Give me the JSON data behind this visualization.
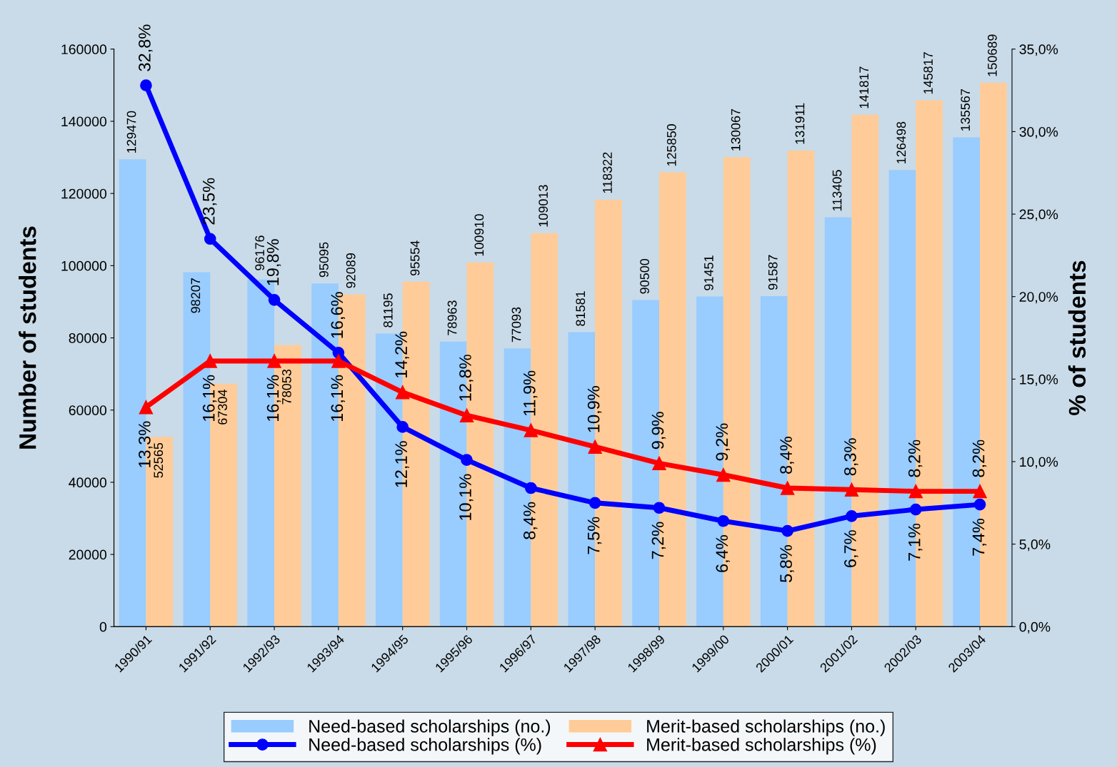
{
  "chart_data": {
    "type": "bar",
    "ylabel": "Number of students",
    "y2label": "% of students",
    "categories": [
      "1990/91",
      "1991/92",
      "1992/93",
      "1993/94",
      "1994/95",
      "1995/96",
      "1996/97",
      "1997/98",
      "1998/99",
      "1999/00",
      "2000/01",
      "2001/02",
      "2002/03",
      "2003/04"
    ],
    "series": [
      {
        "name": "Need-based scholarships (no.)",
        "color": "#99ccff",
        "values": [
          129470,
          98207,
          96176,
          95095,
          81195,
          78963,
          77093,
          81581,
          90500,
          91451,
          91587,
          113405,
          126498,
          135567
        ]
      },
      {
        "name": "Merit-based scholarships (no.)",
        "color": "#ffcc99",
        "values": [
          52565,
          67304,
          78053,
          92089,
          95554,
          100910,
          109013,
          118322,
          125850,
          130067,
          131911,
          141817,
          145817,
          150689
        ]
      },
      {
        "name": "Need-based scholarships (%)",
        "type": "line",
        "axis": "y2",
        "color": "#0000ff",
        "marker": "circle",
        "values": [
          32.8,
          23.5,
          19.8,
          16.6,
          12.1,
          10.1,
          8.4,
          7.5,
          7.2,
          6.4,
          5.8,
          6.7,
          7.1,
          7.4
        ],
        "value_labels": [
          "32,8%",
          "23,5%",
          "19,8%",
          "16,6%",
          "12,1%",
          "10,1%",
          "8,4%",
          "7,5%",
          "7,2%",
          "6,4%",
          "5,8%",
          "6,7%",
          "7,1%",
          "7,4%"
        ]
      },
      {
        "name": "Merit-based scholarships (%)",
        "type": "line",
        "axis": "y2",
        "color": "#ff0000",
        "marker": "triangle",
        "values": [
          13.3,
          16.1,
          16.1,
          16.1,
          14.2,
          12.8,
          11.9,
          10.9,
          9.9,
          9.2,
          8.4,
          8.3,
          8.2,
          8.2
        ],
        "value_labels": [
          "13,3%",
          "16,1%",
          "16,1%",
          "16,1%",
          "14,2%",
          "12,8%",
          "11,9%",
          "10,9%",
          "9,9%",
          "9,2%",
          "8,4%",
          "8,3%",
          "8,2%",
          "8,2%"
        ]
      }
    ],
    "data_labels": true,
    "ylim": [
      0,
      160000
    ],
    "yticks": [
      0,
      20000,
      40000,
      60000,
      80000,
      100000,
      120000,
      140000,
      160000
    ],
    "y2lim": [
      0,
      35
    ],
    "y2ticks": [
      {
        "value": 0,
        "label": "0,0%"
      },
      {
        "value": 5,
        "label": "5,0%"
      },
      {
        "value": 10,
        "label": "10,0%"
      },
      {
        "value": 15,
        "label": "15,0%"
      },
      {
        "value": 20,
        "label": "20,0%"
      },
      {
        "value": 25,
        "label": "25,0%"
      },
      {
        "value": 30,
        "label": "30,0%"
      },
      {
        "value": 35,
        "label": "35,0%"
      }
    ],
    "grid": false,
    "legend": "bottom"
  }
}
